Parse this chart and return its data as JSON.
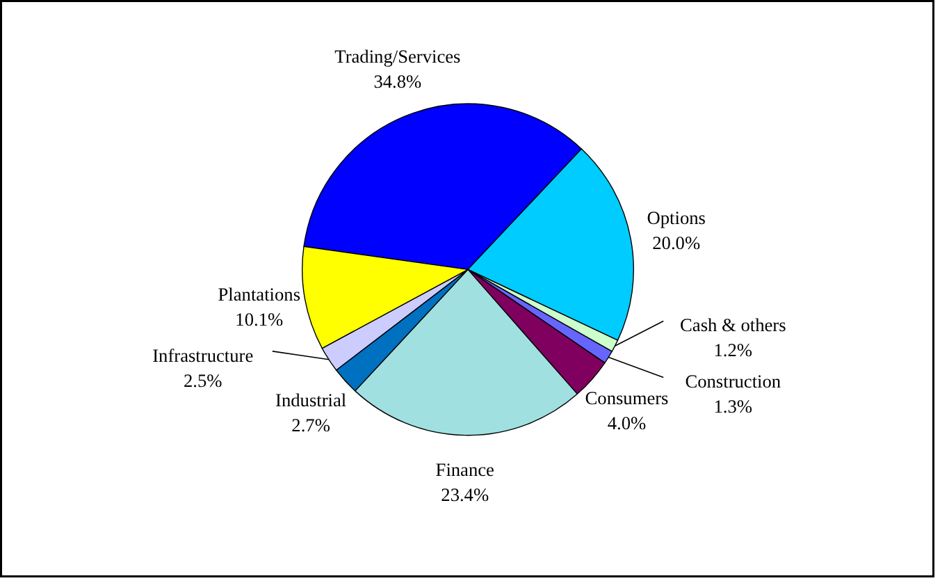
{
  "chart_data": {
    "type": "pie",
    "categories": [
      "Trading/Services",
      "Options",
      "Cash & others",
      "Construction",
      "Consumers",
      "Finance",
      "Industrial",
      "Infrastructure",
      "Plantations"
    ],
    "values": [
      34.8,
      20.0,
      1.2,
      1.3,
      4.0,
      23.4,
      2.7,
      2.5,
      10.1
    ],
    "value_labels": [
      "34.8%",
      "20.0%",
      "1.2%",
      "1.3%",
      "4.0%",
      "23.4%",
      "2.7%",
      "2.5%",
      "10.1%"
    ],
    "colors": [
      "#0000ff",
      "#00ccff",
      "#ccffcc",
      "#6666ff",
      "#800060",
      "#a0e0e0",
      "#0070c0",
      "#ccccff",
      "#ffff00"
    ]
  }
}
